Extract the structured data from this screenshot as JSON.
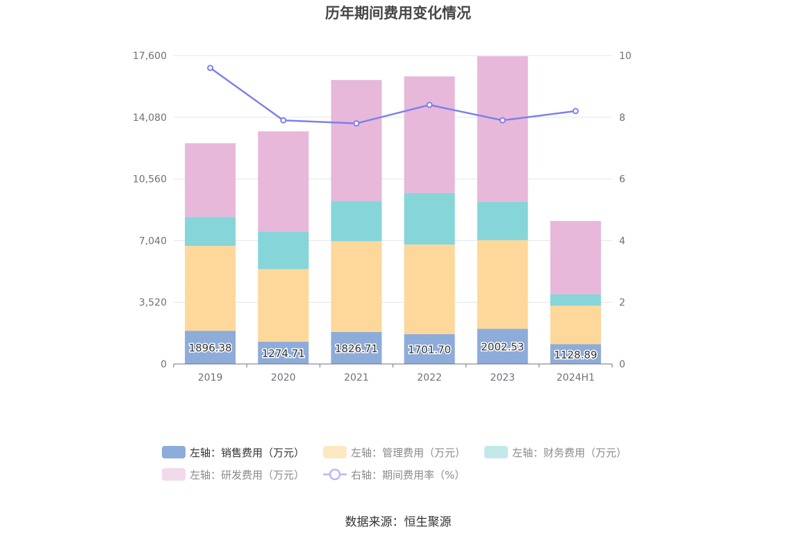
{
  "chart_data": {
    "type": "bar",
    "title": "历年期间费用变化情况",
    "source": "数据来源：恒生聚源",
    "categories": [
      "2019",
      "2020",
      "2021",
      "2022",
      "2023",
      "2024H1"
    ],
    "y_left": {
      "ticks": [
        "0",
        "3,520",
        "7,040",
        "10,560",
        "14,080",
        "17,600"
      ],
      "min": 0,
      "max": 17600
    },
    "y_right": {
      "ticks": [
        "0",
        "2",
        "4",
        "6",
        "8",
        "10"
      ],
      "min": 0,
      "max": 10
    },
    "series": [
      {
        "name": "左轴：销售费用（万元）",
        "type": "bar",
        "stack": "left",
        "color": "#8eacd9",
        "values": [
          1896.38,
          1274.71,
          1826.71,
          1701.7,
          2002.53,
          1128.89
        ],
        "labels": [
          "1896.38",
          "1274.71",
          "1826.71",
          "1701.70",
          "2002.53",
          "1128.89"
        ]
      },
      {
        "name": "左轴：管理费用（万元）",
        "type": "bar",
        "stack": "left",
        "color": "#fed89a",
        "values": [
          4840,
          4140,
          5180,
          5110,
          5060,
          2200
        ]
      },
      {
        "name": "左轴：财务费用（万元）",
        "type": "bar",
        "stack": "left",
        "color": "#86d5d9",
        "values": [
          1660,
          2150,
          2290,
          2950,
          2190,
          650
        ]
      },
      {
        "name": "左轴：研发费用（万元）",
        "type": "bar",
        "stack": "left",
        "color": "#e7b8da",
        "values": [
          4200,
          5710,
          6910,
          6650,
          8310,
          4180
        ]
      },
      {
        "name": "右轴：期间费用率（%）",
        "type": "line",
        "axis": "right",
        "color": "#7b80ec",
        "values": [
          9.6,
          7.9,
          7.8,
          8.4,
          7.9,
          8.2
        ]
      }
    ]
  }
}
